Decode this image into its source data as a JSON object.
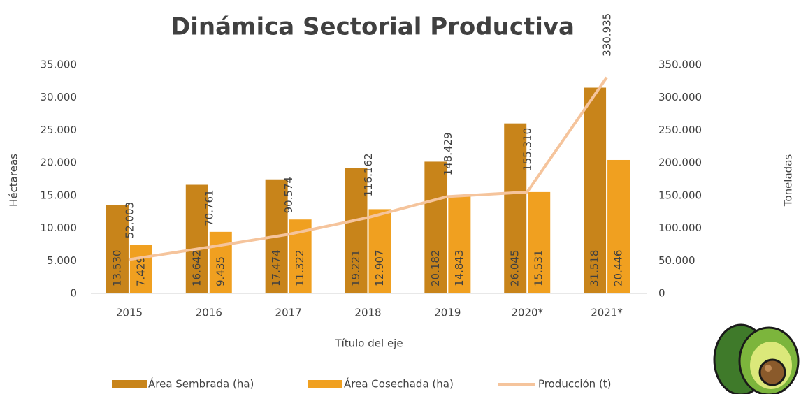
{
  "chart_data": {
    "type": "bar",
    "title": "Dinámica Sectorial Productiva",
    "x_label": "Título del eje",
    "y_label": "Héctareas",
    "y2_label": "Toneladas",
    "categories": [
      "2015",
      "2016",
      "2017",
      "2018",
      "2019",
      "2020*",
      "2021*"
    ],
    "series": [
      {
        "name": "Área Sembrada (ha)",
        "type": "bar",
        "color": "#c8841a",
        "values": [
          13530,
          16642,
          17474,
          19221,
          20182,
          26045,
          31518
        ],
        "value_labels": [
          "13.530",
          "16.642",
          "17.474",
          "19.221",
          "20.182",
          "26.045",
          "31.518"
        ]
      },
      {
        "name": "Área Cosechada (ha)",
        "type": "bar",
        "color": "#f0a020",
        "values": [
          7429,
          9435,
          11322,
          12907,
          14843,
          15531,
          20446
        ],
        "value_labels": [
          "7.429",
          "9.435",
          "11.322",
          "12.907",
          "14.843",
          "15.531",
          "20.446"
        ]
      },
      {
        "name": "Producción (t)",
        "type": "line",
        "axis": "y2",
        "color": "#f5c49c",
        "values": [
          52003,
          70761,
          90574,
          116162,
          148429,
          155310,
          330935
        ],
        "value_labels": [
          "52.003",
          "70.761",
          "90.574",
          "116.162",
          "148.429",
          "155.310",
          "330.935"
        ]
      }
    ],
    "ylim": [
      0,
      35000
    ],
    "yticks": [
      0,
      {
        "value": 5000,
        "label": "5.000"
      },
      {
        "value": 10000,
        "label": "10.000"
      },
      {
        "value": 15000,
        "label": "15.000"
      },
      {
        "value": 20000,
        "label": "20.000"
      },
      {
        "value": 25000,
        "label": "25.000"
      },
      {
        "value": 30000,
        "label": "30.000"
      },
      {
        "value": 35000,
        "label": "35.000"
      }
    ],
    "y2lim": [
      0,
      350000
    ],
    "y2ticks": [
      0,
      {
        "value": 50000,
        "label": "50.000"
      },
      {
        "value": 100000,
        "label": "100.000"
      },
      {
        "value": 150000,
        "label": "150.000"
      },
      {
        "value": 200000,
        "label": "200.000"
      },
      {
        "value": 250000,
        "label": "250.000"
      },
      {
        "value": 300000,
        "label": "300.000"
      },
      {
        "value": 350000,
        "label": "350.000"
      }
    ],
    "grid": false,
    "legend": "bottom"
  }
}
